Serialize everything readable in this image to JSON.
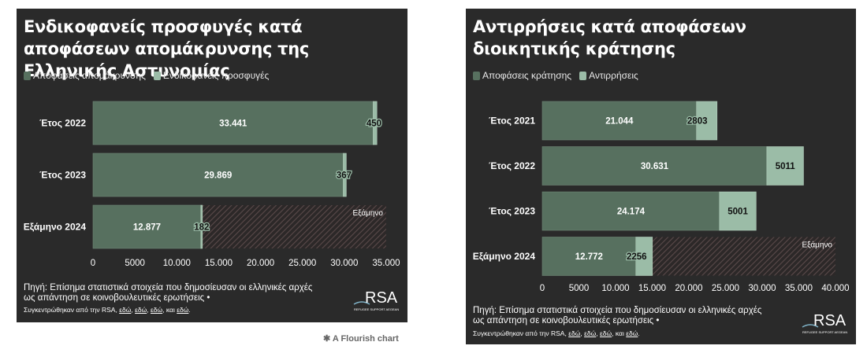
{
  "colors": {
    "panel_bg": "#2a2a2a",
    "primary": "#57705f",
    "secondary": "#9bbca7",
    "hatch": "#5a4a4a",
    "text": "#ffffff"
  },
  "left": {
    "title": "Ενδικοφανείς προσφυγές κατά αποφάσεων απομάκρυνσης της Ελληνικής Αστυνομίας",
    "legend": [
      "Αποφάσεις απομάκρυνσης",
      "Ενδικοφανείς προσφυγές"
    ],
    "source": "Πηγή: Επίσημα στατιστικά στοιχεία που δημοσίευσαν οι ελληνικές αρχές ως απάντηση σε κοινοβουλευτικές ερωτήσεις •",
    "credits_prefix": "Συγκεντρώθηκαν από την RSA,",
    "credits_links": [
      "εδώ",
      "εδώ",
      "εδώ"
    ],
    "credits_and": "και",
    "credits_last": "εδώ",
    "logo": "RSA",
    "logo_sub": "REFUGEE SUPPORT AEGEAN"
  },
  "right": {
    "title": "Αντιρρήσεις κατά αποφάσεων διοικητικής κράτησης",
    "legend": [
      "Αποφάσεις κράτησης",
      "Αντιρρήσεις"
    ],
    "source": "Πηγή: Επίσημα στατιστικά στοιχεία που δημοσίευσαν οι ελληνικές αρχές ως απάντηση σε κοινοβουλευτικές ερωτήσεις •",
    "credits_prefix": "Συγκεντρώθηκαν από την RSA,",
    "credits_links": [
      "εδώ",
      "εδώ",
      "εδώ"
    ],
    "credits_and": "και",
    "credits_last": "εδώ",
    "logo": "RSA",
    "logo_sub": "REFUGEE SUPPORT AEGEAN"
  },
  "flourish_label": "A Flourish chart",
  "chart_data": [
    {
      "type": "bar",
      "orientation": "horizontal",
      "stacked": true,
      "title": "Ενδικοφανείς προσφυγές κατά αποφάσεων απομάκρυνσης της Ελληνικής Αστυνομίας",
      "categories": [
        "Έτος 2022",
        "Έτος 2023",
        "Εξάμηνο 2024"
      ],
      "series": [
        {
          "name": "Αποφάσεις απομάκρυνσης",
          "values": [
            33441,
            29869,
            12877
          ],
          "labels": [
            "33.441",
            "29.869",
            "12.877"
          ]
        },
        {
          "name": "Ενδικοφανείς προσφυγές",
          "values": [
            450,
            367,
            182
          ],
          "labels": [
            "450",
            "367",
            "182"
          ]
        }
      ],
      "xlim": [
        0,
        35000
      ],
      "xticks": [
        0,
        5000,
        10000,
        15000,
        20000,
        25000,
        30000,
        35000
      ],
      "xtick_labels": [
        "0",
        "5000",
        "10.000",
        "15.000",
        "20.000",
        "25.000",
        "30.000",
        "35.000"
      ],
      "annotation": {
        "category": "Εξάμηνο 2024",
        "text": "Εξάμηνο"
      }
    },
    {
      "type": "bar",
      "orientation": "horizontal",
      "stacked": true,
      "title": "Αντιρρήσεις κατά αποφάσεων διοικητικής κράτησης",
      "categories": [
        "Έτος 2021",
        "Έτος 2022",
        "Έτος 2023",
        "Εξάμηνο 2024"
      ],
      "series": [
        {
          "name": "Αποφάσεις κράτησης",
          "values": [
            21044,
            30631,
            24174,
            12772
          ],
          "labels": [
            "21.044",
            "30.631",
            "24.174",
            "12.772"
          ]
        },
        {
          "name": "Αντιρρήσεις",
          "values": [
            2803,
            5011,
            5001,
            2256
          ],
          "labels": [
            "2803",
            "5011",
            "5001",
            "2256"
          ]
        }
      ],
      "xlim": [
        0,
        40000
      ],
      "xticks": [
        0,
        5000,
        10000,
        15000,
        20000,
        25000,
        30000,
        35000,
        40000
      ],
      "xtick_labels": [
        "0",
        "5000",
        "10.000",
        "15.000",
        "20.000",
        "25.000",
        "30.000",
        "35.000",
        "40.000"
      ],
      "annotation": {
        "category": "Εξάμηνο 2024",
        "text": "Εξάμηνο"
      }
    }
  ]
}
